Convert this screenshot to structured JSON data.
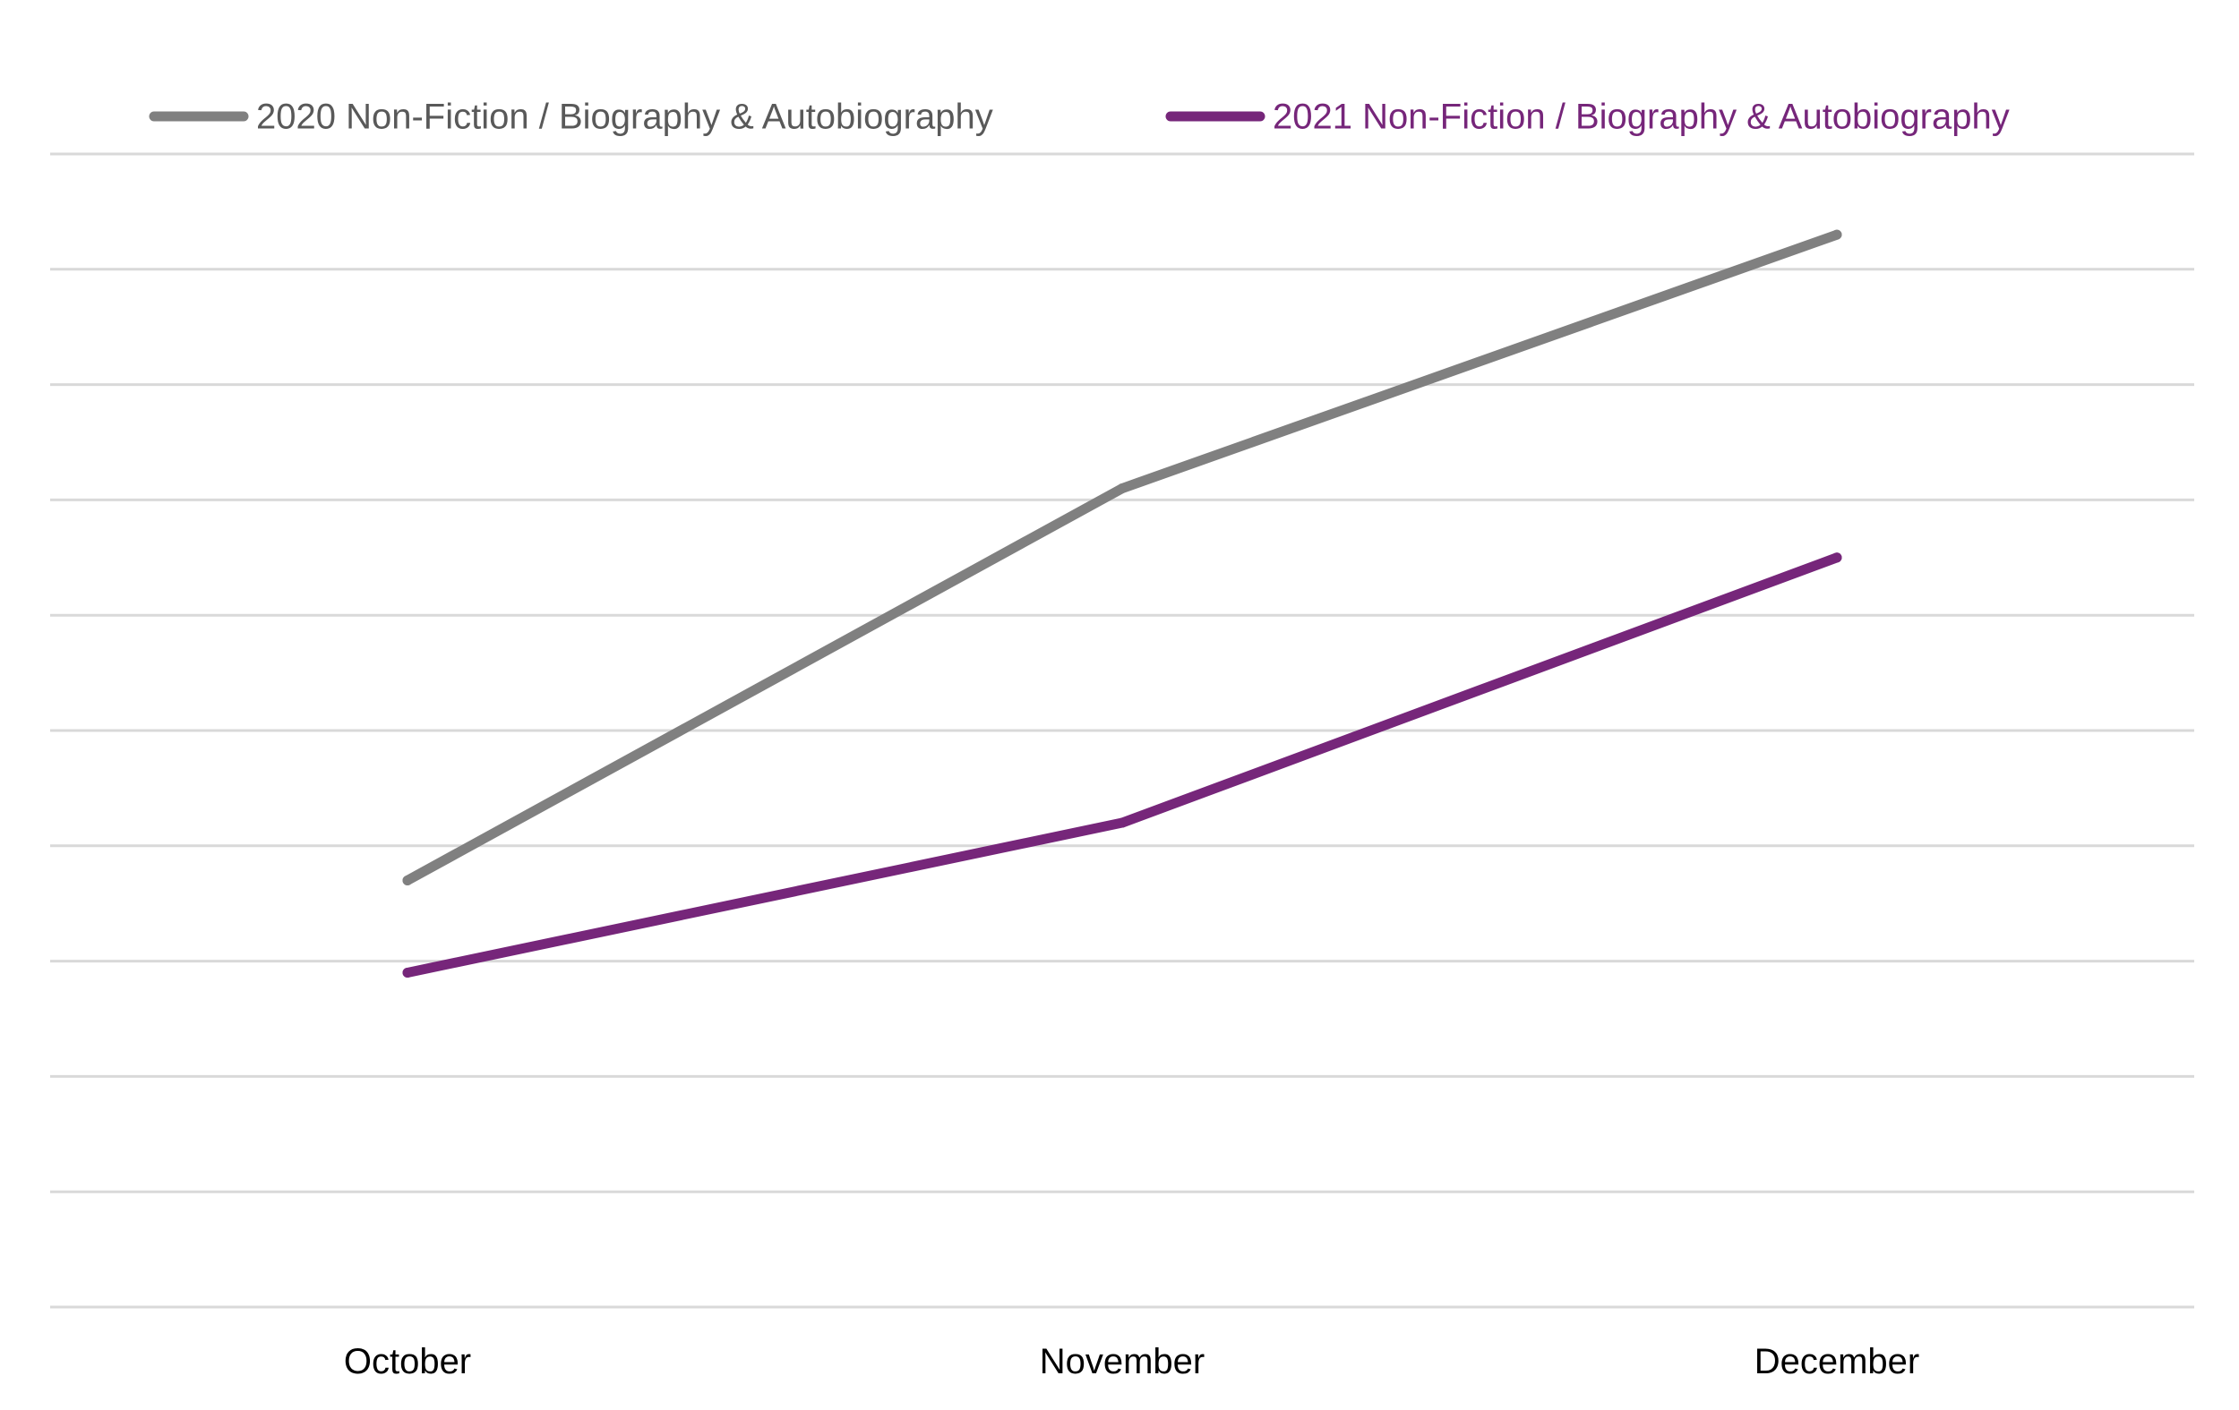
{
  "chart_data": {
    "type": "line",
    "title": "",
    "xlabel": "",
    "ylabel": "",
    "categories": [
      "October",
      "November",
      "December"
    ],
    "ylim": [
      0,
      10
    ],
    "gridlines": 10,
    "grid": true,
    "legend_position": "top",
    "series": [
      {
        "name": "2020 Non-Fiction / Biography & Autobiography",
        "color": "#808080",
        "values": [
          3.7,
          7.1,
          9.3
        ]
      },
      {
        "name": "2021 Non-Fiction / Biography & Autobiography",
        "color": "#76267a",
        "values": [
          2.9,
          4.2,
          6.5
        ]
      }
    ]
  }
}
